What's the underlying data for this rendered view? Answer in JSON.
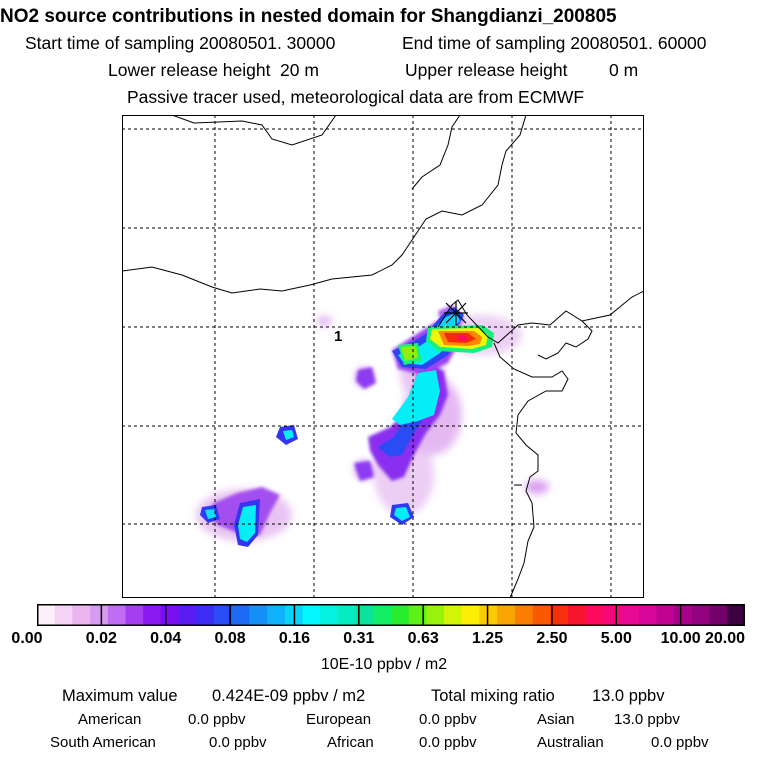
{
  "header": {
    "title": "NO2 source contributions in nested domain for Shangdianzi_200805",
    "start_label": "Start time of sampling 20080501. 30000",
    "end_label": "End time of sampling 20080501. 60000",
    "lower_label": "Lower release height",
    "lower_value": "20 m",
    "upper_label": "Upper release height",
    "upper_value": "0 m",
    "note": "Passive tracer used, meteorological data are from ECMWF"
  },
  "map": {
    "marker_label": "1",
    "site_marker": "x-star-marker",
    "palette": [
      "#ffffff",
      "#fbe8fb",
      "#f4cdf6",
      "#ecaef3",
      "#d58ef3",
      "#a83ff1",
      "#8b16ee",
      "#6a0cf0",
      "#4222f2",
      "#2b49f5",
      "#1a78f8",
      "#11a7fb",
      "#0bd6fd",
      "#05fcf0",
      "#08f5c0",
      "#16f07e",
      "#36ea28",
      "#77ee0a",
      "#b9f406",
      "#f3f60a",
      "#fcd006",
      "#fca602",
      "#fb7402",
      "#f94101",
      "#f31911",
      "#fb0a5d",
      "#f30787",
      "#e0089b",
      "#c5048f",
      "#a50283",
      "#8a0178",
      "#4b0050"
    ],
    "cbar_colors": [
      "#fdf0fd",
      "#f5d3f5",
      "#ebb6f0",
      "#d69cef",
      "#bf6df3",
      "#a43ff2",
      "#8b19f1",
      "#7a10f0",
      "#5a1cf2",
      "#3b2df4",
      "#2a4bf5",
      "#1e6af7",
      "#1690f9",
      "#10b0fb",
      "#0ad3fd",
      "#04f6fe",
      "#05f0df",
      "#07ebc2",
      "#0be39a",
      "#13ee67",
      "#28ec2e",
      "#5ff018",
      "#99f20d",
      "#d2f507",
      "#fdee06",
      "#fcca05",
      "#fba503",
      "#fb7e02",
      "#f95a01",
      "#f72f0a",
      "#f7152e",
      "#fb0a5d",
      "#f50879",
      "#e70a92",
      "#d70698",
      "#c00391",
      "#a90288",
      "#92017e",
      "#730069",
      "#3d0040"
    ]
  },
  "colorbar": {
    "labels": [
      "0.00",
      "0.02",
      "0.04",
      "0.08",
      "0.16",
      "0.31",
      "0.63",
      "1.25",
      "2.50",
      "5.00",
      "10.00",
      "20.00"
    ],
    "units": "10E-10 ppbv / m2"
  },
  "stats": {
    "max_label": "Maximum value",
    "max_value": "0.424E-09 ppbv / m2",
    "total_label": "Total mixing ratio",
    "total_value": "13.0 ppbv",
    "american_label": "American",
    "american_value": "0.0 ppbv",
    "european_label": "European",
    "european_value": "0.0 ppbv",
    "asian_label": "Asian",
    "asian_value": "13.0 ppbv",
    "south_american_label": "South American",
    "south_american_value": "0.0 ppbv",
    "african_label": "African",
    "african_value": "0.0 ppbv",
    "australian_label": "Australian",
    "australian_value": "0.0 ppbv"
  }
}
